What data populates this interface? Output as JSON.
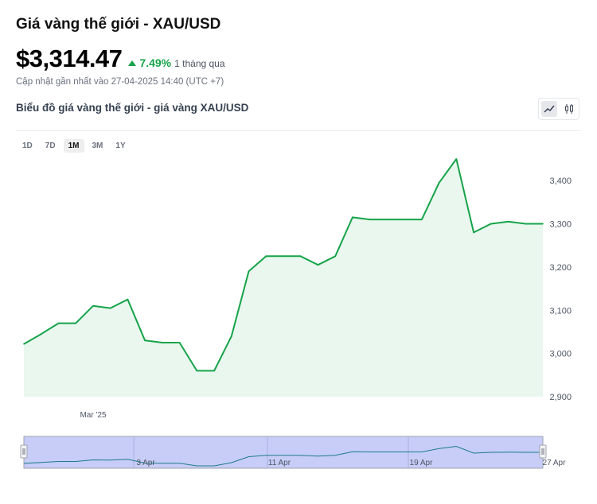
{
  "header": {
    "title": "Giá vàng thế giới - XAU/USD",
    "price": "$3,314.47",
    "change_pct": "7.49%",
    "change_period": "1 tháng qua",
    "updated": "Cập nhật gần nhất vào 27-04-2025 14:40 (UTC +7)"
  },
  "chart_title": "Biểu đồ giá vàng thế giới - giá vàng XAU/USD",
  "ranges": [
    "1D",
    "7D",
    "1M",
    "3M",
    "1Y"
  ],
  "active_range": "1M",
  "colors": {
    "line": "#16a34a",
    "area": "#e9f7ee",
    "up": "#16a34a",
    "navigator_fill": "#c7cdf7"
  },
  "chart_data": {
    "type": "area",
    "ylim": [
      2900,
      3450
    ],
    "yticks": [
      "3,400",
      "3,300",
      "3,200",
      "3,100",
      "3,000",
      "2,900"
    ],
    "ytick_values": [
      3400,
      3300,
      3200,
      3100,
      3000,
      2900
    ],
    "xticks": [
      "Mar '25"
    ],
    "x": [
      "Mar 28",
      "Mar 29",
      "Mar 30",
      "Mar 31",
      "Apr 1",
      "Apr 2",
      "Apr 3",
      "Apr 4",
      "Apr 5",
      "Apr 6",
      "Apr 7",
      "Apr 8",
      "Apr 9",
      "Apr 10",
      "Apr 11",
      "Apr 12",
      "Apr 13",
      "Apr 14",
      "Apr 15",
      "Apr 16",
      "Apr 17",
      "Apr 18",
      "Apr 19",
      "Apr 20",
      "Apr 21",
      "Apr 22",
      "Apr 23",
      "Apr 24",
      "Apr 25",
      "Apr 26",
      "Apr 27"
    ],
    "values": [
      3022,
      3045,
      3070,
      3070,
      3110,
      3105,
      3125,
      3030,
      3025,
      3025,
      2960,
      2960,
      3040,
      3190,
      3225,
      3225,
      3225,
      3205,
      3225,
      3315,
      3310,
      3310,
      3310,
      3310,
      3395,
      3450,
      3280,
      3300,
      3305,
      3300,
      3300
    ]
  },
  "navigator": {
    "labels": [
      "3 Apr",
      "11 Apr",
      "19 Apr",
      "27 Apr"
    ]
  }
}
